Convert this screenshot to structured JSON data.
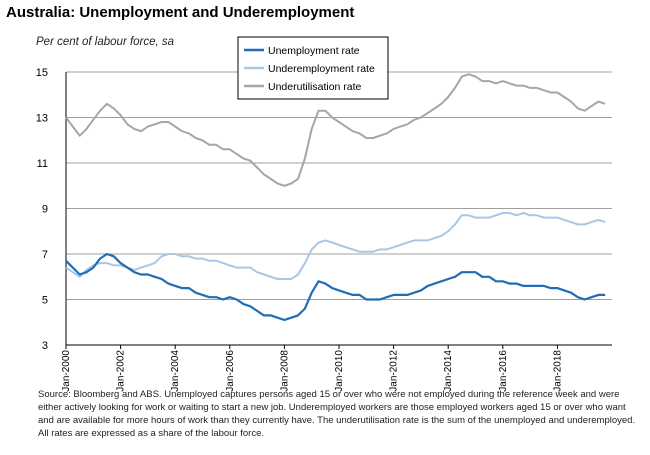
{
  "title": "Australia: Unemployment and Underemployment",
  "subtitle": "Per cent of labour force, sa",
  "source": "Source: Bloomberg and ABS. Unemployed captures persons aged 15 or over who were not employed during the reference week and were either actively looking for work or waiting to start a new job. Underemployed workers are those employed workers aged 15 or over who want and are available for more hours of work than they currently have. The underutilisation rate is the sum of the unemployed and underemployed. All rates are expressed as a share of the labour force.",
  "colors": {
    "unemployment": "#1f6db5",
    "underemployment": "#a9c6e6",
    "underutilisation": "#a6a6a6",
    "grid": "#a0a0a0"
  },
  "chart_data": {
    "type": "line",
    "title": "Australia: Unemployment and Underemployment",
    "ylabel": "Per cent of labour force, sa",
    "xlabel": "",
    "ylim": [
      3,
      15
    ],
    "xlim": [
      2000.0,
      2020.0
    ],
    "yticks": [
      "3",
      "5",
      "7",
      "9",
      "11",
      "13",
      "15"
    ],
    "xticks": [
      "Jan-2000",
      "Jan-2002",
      "Jan-2004",
      "Jan-2006",
      "Jan-2008",
      "Jan-2010",
      "Jan-2012",
      "Jan-2014",
      "Jan-2016",
      "Jan-2018"
    ],
    "grid": "horizontal",
    "legend": "top-center",
    "x": [
      2000.0,
      2000.25,
      2000.5,
      2000.75,
      2001.0,
      2001.25,
      2001.5,
      2001.75,
      2002.0,
      2002.25,
      2002.5,
      2002.75,
      2003.0,
      2003.25,
      2003.5,
      2003.75,
      2004.0,
      2004.25,
      2004.5,
      2004.75,
      2005.0,
      2005.25,
      2005.5,
      2005.75,
      2006.0,
      2006.25,
      2006.5,
      2006.75,
      2007.0,
      2007.25,
      2007.5,
      2007.75,
      2008.0,
      2008.25,
      2008.5,
      2008.75,
      2009.0,
      2009.25,
      2009.5,
      2009.75,
      2010.0,
      2010.25,
      2010.5,
      2010.75,
      2011.0,
      2011.25,
      2011.5,
      2011.75,
      2012.0,
      2012.25,
      2012.5,
      2012.75,
      2013.0,
      2013.25,
      2013.5,
      2013.75,
      2014.0,
      2014.25,
      2014.5,
      2014.75,
      2015.0,
      2015.25,
      2015.5,
      2015.75,
      2016.0,
      2016.25,
      2016.5,
      2016.75,
      2017.0,
      2017.25,
      2017.5,
      2017.75,
      2018.0,
      2018.25,
      2018.5,
      2018.75,
      2019.0,
      2019.25,
      2019.5,
      2019.75
    ],
    "series": [
      {
        "name": "Unemployment rate",
        "color_key": "unemployment",
        "values": [
          6.7,
          6.4,
          6.1,
          6.2,
          6.4,
          6.8,
          7.0,
          6.9,
          6.6,
          6.4,
          6.2,
          6.1,
          6.1,
          6.0,
          5.9,
          5.7,
          5.6,
          5.5,
          5.5,
          5.3,
          5.2,
          5.1,
          5.1,
          5.0,
          5.1,
          5.0,
          4.8,
          4.7,
          4.5,
          4.3,
          4.3,
          4.2,
          4.1,
          4.2,
          4.3,
          4.6,
          5.3,
          5.8,
          5.7,
          5.5,
          5.4,
          5.3,
          5.2,
          5.2,
          5.0,
          5.0,
          5.0,
          5.1,
          5.2,
          5.2,
          5.2,
          5.3,
          5.4,
          5.6,
          5.7,
          5.8,
          5.9,
          6.0,
          6.2,
          6.2,
          6.2,
          6.0,
          6.0,
          5.8,
          5.8,
          5.7,
          5.7,
          5.6,
          5.6,
          5.6,
          5.6,
          5.5,
          5.5,
          5.4,
          5.3,
          5.1,
          5.0,
          5.1,
          5.2,
          5.2
        ]
      },
      {
        "name": "Underemployment rate",
        "color_key": "underemployment",
        "values": [
          6.4,
          6.2,
          6.0,
          6.3,
          6.5,
          6.6,
          6.6,
          6.5,
          6.5,
          6.4,
          6.3,
          6.4,
          6.5,
          6.6,
          6.9,
          7.0,
          7.0,
          6.9,
          6.9,
          6.8,
          6.8,
          6.7,
          6.7,
          6.6,
          6.5,
          6.4,
          6.4,
          6.4,
          6.2,
          6.1,
          6.0,
          5.9,
          5.9,
          5.9,
          6.1,
          6.6,
          7.2,
          7.5,
          7.6,
          7.5,
          7.4,
          7.3,
          7.2,
          7.1,
          7.1,
          7.1,
          7.2,
          7.2,
          7.3,
          7.4,
          7.5,
          7.6,
          7.6,
          7.6,
          7.7,
          7.8,
          8.0,
          8.3,
          8.7,
          8.7,
          8.6,
          8.6,
          8.6,
          8.7,
          8.8,
          8.8,
          8.7,
          8.8,
          8.7,
          8.7,
          8.6,
          8.6,
          8.6,
          8.5,
          8.4,
          8.3,
          8.3,
          8.4,
          8.5,
          8.4
        ]
      },
      {
        "name": "Underutilisation rate",
        "color_key": "underutilisation",
        "values": [
          13.0,
          12.6,
          12.2,
          12.5,
          12.9,
          13.3,
          13.6,
          13.4,
          13.1,
          12.7,
          12.5,
          12.4,
          12.6,
          12.7,
          12.8,
          12.8,
          12.6,
          12.4,
          12.3,
          12.1,
          12.0,
          11.8,
          11.8,
          11.6,
          11.6,
          11.4,
          11.2,
          11.1,
          10.8,
          10.5,
          10.3,
          10.1,
          10.0,
          10.1,
          10.3,
          11.2,
          12.5,
          13.3,
          13.3,
          13.0,
          12.8,
          12.6,
          12.4,
          12.3,
          12.1,
          12.1,
          12.2,
          12.3,
          12.5,
          12.6,
          12.7,
          12.9,
          13.0,
          13.2,
          13.4,
          13.6,
          13.9,
          14.3,
          14.8,
          14.9,
          14.8,
          14.6,
          14.6,
          14.5,
          14.6,
          14.5,
          14.4,
          14.4,
          14.3,
          14.3,
          14.2,
          14.1,
          14.1,
          13.9,
          13.7,
          13.4,
          13.3,
          13.5,
          13.7,
          13.6
        ]
      }
    ]
  }
}
